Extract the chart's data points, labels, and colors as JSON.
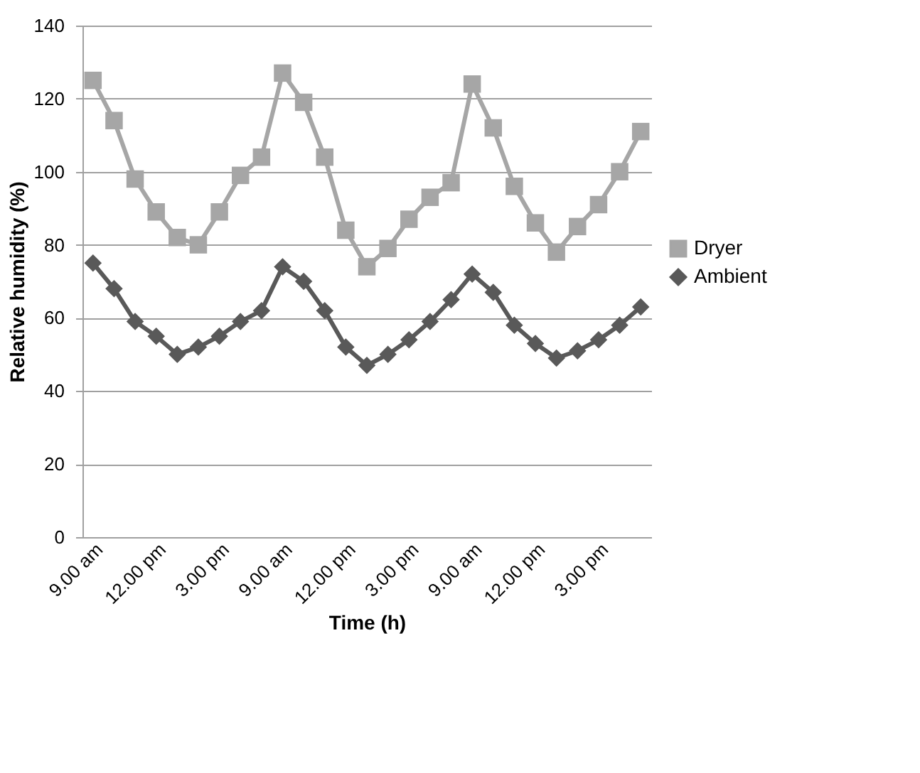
{
  "chart_data": {
    "type": "line",
    "xlabel": "Time (h)",
    "ylabel": "Relative humidity (%)",
    "categories": [
      "9.00 am",
      null,
      null,
      "12.00 pm",
      null,
      null,
      "3.00 pm",
      null,
      null,
      "9.00 am",
      null,
      null,
      "12.00 pm",
      null,
      null,
      "3.00 pm",
      null,
      null,
      "9.00 am",
      null,
      null,
      "12.00 pm",
      null,
      null,
      "3.00 pm",
      null,
      null
    ],
    "series": [
      {
        "name": "Dryer",
        "color": "#a6a6a6",
        "marker": "square",
        "values": [
          125,
          114,
          98,
          89,
          82,
          80,
          89,
          99,
          104,
          127,
          119,
          104,
          84,
          74,
          79,
          87,
          93,
          97,
          124,
          112,
          96,
          86,
          78,
          85,
          91,
          100,
          111
        ]
      },
      {
        "name": "Ambient",
        "color": "#595959",
        "marker": "diamond",
        "values": [
          75,
          68,
          59,
          55,
          50,
          52,
          55,
          59,
          62,
          74,
          70,
          62,
          52,
          47,
          50,
          54,
          59,
          65,
          72,
          67,
          58,
          53,
          49,
          51,
          54,
          58,
          63
        ]
      }
    ],
    "ylim": [
      0,
      140
    ],
    "yticks": [
      0,
      20,
      40,
      60,
      80,
      100,
      120,
      140
    ],
    "grid": "y",
    "legend": "right",
    "line_style": "solid"
  }
}
